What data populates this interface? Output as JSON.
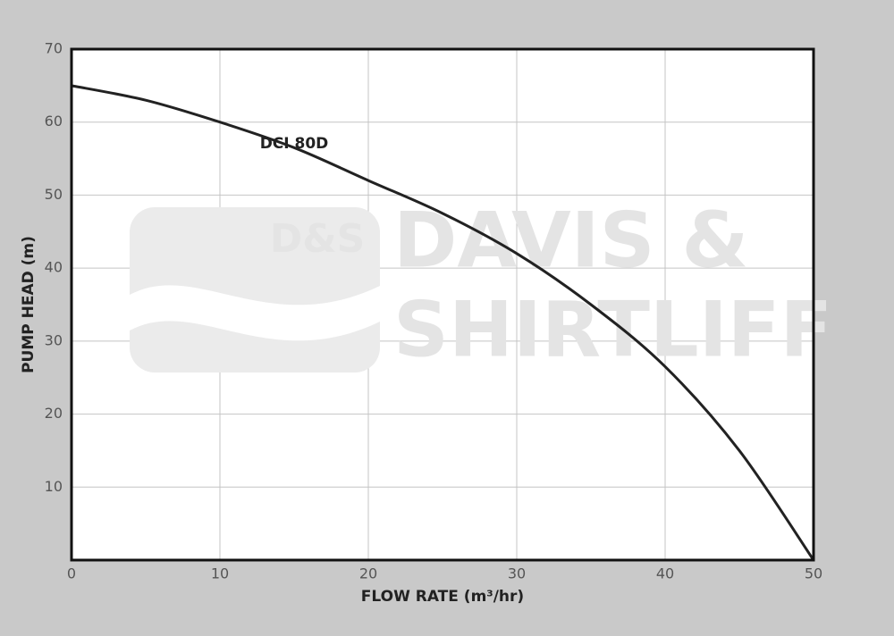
{
  "chart_data": {
    "type": "line",
    "x_label": "FLOW RATE (m³/hr)",
    "y_label": "PUMP HEAD (m)",
    "series": [
      {
        "name": "DCI 80D",
        "color": "#222222",
        "x": [
          0,
          5,
          10,
          15,
          20,
          25,
          30,
          35,
          40,
          45,
          50
        ],
        "values": [
          65,
          63,
          60,
          56.5,
          52,
          47.5,
          42,
          35,
          26.5,
          15,
          0
        ]
      }
    ],
    "xlim": [
      0,
      50
    ],
    "xticks": [
      0,
      10,
      20,
      30,
      40,
      50
    ],
    "ylim": [
      0,
      70
    ],
    "yticks": [
      10,
      20,
      30,
      40,
      50,
      60,
      70
    ],
    "grid": true,
    "annotation": {
      "text": "DCI 80D",
      "x": 15,
      "y": 57
    }
  },
  "watermark": [
    "D&S",
    "DAVIS &",
    "SHIRTLIFF"
  ]
}
